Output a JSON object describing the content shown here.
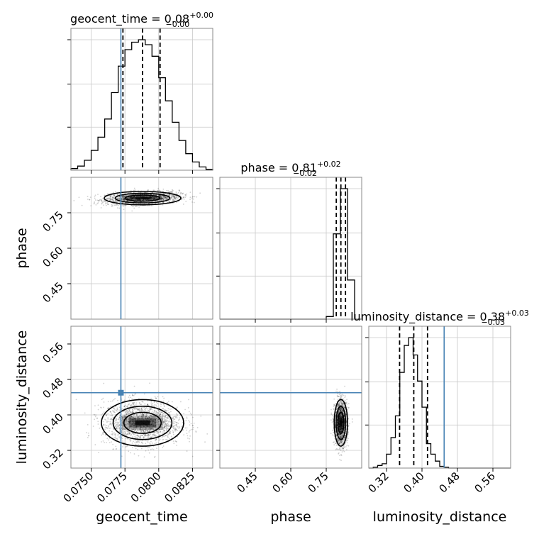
{
  "chart_data": {
    "type": "corner",
    "parameters": [
      {
        "name": "geocent_time",
        "label": "geocent_time",
        "range": [
          0.0735,
          0.084
        ],
        "ticks": [
          0.075,
          0.0775,
          0.08,
          0.0825
        ],
        "tick_labels": [
          "0.0750",
          "0.0775",
          "0.0800",
          "0.0825"
        ],
        "title": {
          "text": "geocent_time = 0.08",
          "sup": "+0.00",
          "sub": "−0.00"
        },
        "truth": 0.0772,
        "quantiles": [
          0.07735,
          0.0788,
          0.0801
        ],
        "hist": {
          "bins": [
            0.0735,
            0.074,
            0.0745,
            0.075,
            0.0755,
            0.076,
            0.0765,
            0.077,
            0.0775,
            0.078,
            0.0785,
            0.079,
            0.0795,
            0.08,
            0.0805,
            0.081,
            0.0815,
            0.082,
            0.0825,
            0.083,
            0.0835,
            0.084
          ],
          "counts": [
            2,
            5,
            12,
            24,
            40,
            62,
            94,
            126,
            146,
            155,
            158,
            152,
            138,
            112,
            84,
            58,
            36,
            20,
            10,
            4,
            1
          ]
        }
      },
      {
        "name": "phase",
        "label": "phase",
        "range": [
          0.3,
          0.9
        ],
        "ticks": [
          0.45,
          0.6,
          0.75
        ],
        "tick_labels": [
          "0.45",
          "0.60",
          "0.75"
        ],
        "title": {
          "text": "phase = 0.81",
          "sup": "+0.02",
          "sub": "−0.02"
        },
        "truth": null,
        "quantiles": [
          0.7925,
          0.812,
          0.8315
        ],
        "hist": {
          "bins": [
            0.3,
            0.33,
            0.36,
            0.39,
            0.42,
            0.45,
            0.48,
            0.51,
            0.54,
            0.57,
            0.6,
            0.63,
            0.66,
            0.69,
            0.72,
            0.75,
            0.78,
            0.81,
            0.84,
            0.87,
            0.9
          ],
          "counts": [
            0,
            0,
            0,
            0,
            0,
            0,
            0,
            0,
            0,
            0,
            0,
            0,
            0,
            0,
            0,
            3,
            98,
            150,
            45,
            0
          ]
        }
      },
      {
        "name": "luminosity_distance",
        "label": "luminosity_distance",
        "range": [
          0.28,
          0.6
        ],
        "ticks": [
          0.32,
          0.4,
          0.48,
          0.56
        ],
        "tick_labels": [
          "0.32",
          "0.40",
          "0.48",
          "0.56"
        ],
        "title": {
          "text": "luminosity_distance = 0.38",
          "sup": "+0.03",
          "sub": "−0.03"
        },
        "truth": 0.45,
        "quantiles": [
          0.3495,
          0.3815,
          0.4125
        ],
        "hist": {
          "bins": [
            0.28,
            0.29,
            0.3,
            0.31,
            0.32,
            0.33,
            0.34,
            0.35,
            0.36,
            0.37,
            0.38,
            0.39,
            0.4,
            0.41,
            0.42,
            0.43,
            0.44,
            0.45,
            0.46,
            0.47,
            0.48,
            0.49,
            0.5,
            0.51,
            0.52,
            0.53,
            0.54,
            0.55,
            0.56,
            0.57,
            0.58,
            0.59,
            0.6
          ],
          "counts": [
            0,
            1,
            3,
            5,
            16,
            35,
            60,
            110,
            141,
            150,
            130,
            100,
            70,
            28,
            16,
            8,
            2,
            1,
            0,
            0,
            0,
            0,
            0,
            0,
            0,
            0,
            0,
            0,
            0,
            0,
            0,
            0
          ]
        }
      }
    ],
    "truth_color": "#4682b4",
    "hist_color": "#000000",
    "grid": true
  }
}
